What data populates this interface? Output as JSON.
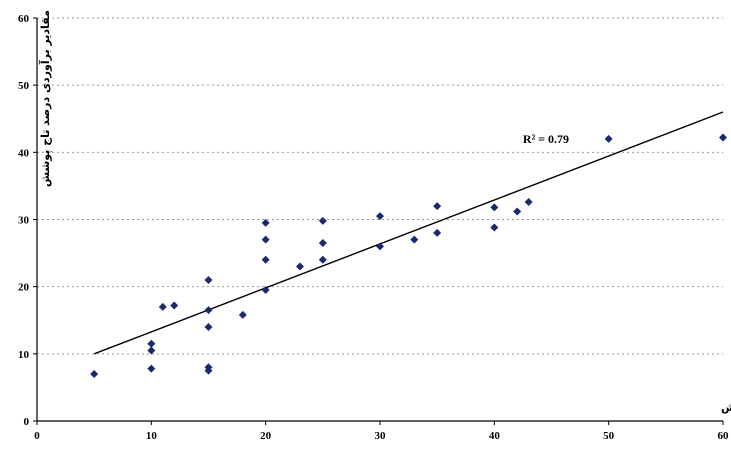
{
  "chart_data": {
    "type": "scatter",
    "title": "",
    "xlabel": "مقادیر واقعی درصد تاج پوشش",
    "ylabel": "مقادیر برآوردی درصد تاج پوشش",
    "xlim": [
      0,
      60
    ],
    "ylim": [
      0,
      60
    ],
    "x_ticks": [
      "0",
      "10",
      "20",
      "30",
      "40",
      "50",
      "60"
    ],
    "y_ticks": [
      "0",
      "10",
      "20",
      "30",
      "40",
      "50",
      "60"
    ],
    "grid": "horizontal dotted",
    "legend": "none",
    "marker_color": "#1a2a6e",
    "trendline_color": "#000000",
    "annotation": {
      "text": "R² = 0.79"
    },
    "trendline": {
      "x": [
        5,
        60
      ],
      "y": [
        10,
        46
      ]
    },
    "points": [
      {
        "x": 5,
        "y": 7
      },
      {
        "x": 10,
        "y": 7.8
      },
      {
        "x": 10,
        "y": 10.5
      },
      {
        "x": 10,
        "y": 11.5
      },
      {
        "x": 11,
        "y": 17
      },
      {
        "x": 12,
        "y": 17.2
      },
      {
        "x": 15,
        "y": 7.5
      },
      {
        "x": 15,
        "y": 8
      },
      {
        "x": 15,
        "y": 14
      },
      {
        "x": 15,
        "y": 16.5
      },
      {
        "x": 15,
        "y": 21
      },
      {
        "x": 18,
        "y": 15.8
      },
      {
        "x": 20,
        "y": 19.5
      },
      {
        "x": 20,
        "y": 24
      },
      {
        "x": 20,
        "y": 27
      },
      {
        "x": 20,
        "y": 29.5
      },
      {
        "x": 23,
        "y": 23
      },
      {
        "x": 25,
        "y": 24
      },
      {
        "x": 25,
        "y": 26.5
      },
      {
        "x": 25,
        "y": 29.8
      },
      {
        "x": 30,
        "y": 26
      },
      {
        "x": 30,
        "y": 30.5
      },
      {
        "x": 33,
        "y": 27
      },
      {
        "x": 35,
        "y": 28
      },
      {
        "x": 35,
        "y": 32
      },
      {
        "x": 40,
        "y": 28.8
      },
      {
        "x": 40,
        "y": 31.8
      },
      {
        "x": 42,
        "y": 31.2
      },
      {
        "x": 43,
        "y": 32.6
      },
      {
        "x": 50,
        "y": 42
      },
      {
        "x": 60,
        "y": 42.2
      }
    ]
  }
}
